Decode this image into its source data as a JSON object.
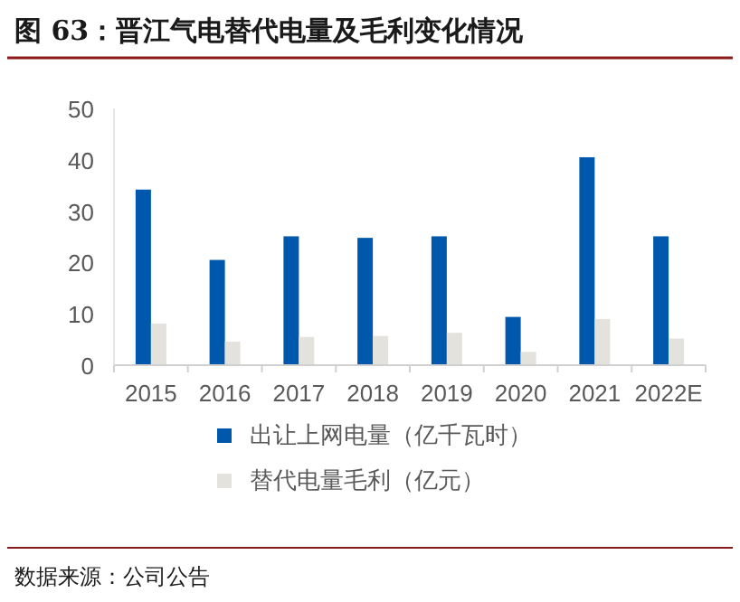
{
  "chart_data": {
    "type": "bar",
    "title": "图 63：晋江气电替代电量及毛利变化情况",
    "categories": [
      "2015",
      "2016",
      "2017",
      "2018",
      "2019",
      "2020",
      "2021",
      "2022E"
    ],
    "series": [
      {
        "name": "出让上网电量（亿千瓦时）",
        "color": "#0058ac",
        "values": [
          34.2,
          20.5,
          25.1,
          24.8,
          25.1,
          9.4,
          40.5,
          25.1
        ]
      },
      {
        "name": "替代电量毛利（亿元）",
        "color": "#e4e2dd",
        "values": [
          8.1,
          4.6,
          5.5,
          5.7,
          6.3,
          2.6,
          9.0,
          5.2
        ]
      }
    ],
    "ylim": [
      0,
      50
    ],
    "yticks": [
      0,
      10,
      20,
      30,
      40,
      50
    ],
    "legend": "bottom",
    "grid": false,
    "annotations": [
      "数据来源：公司公告"
    ]
  }
}
